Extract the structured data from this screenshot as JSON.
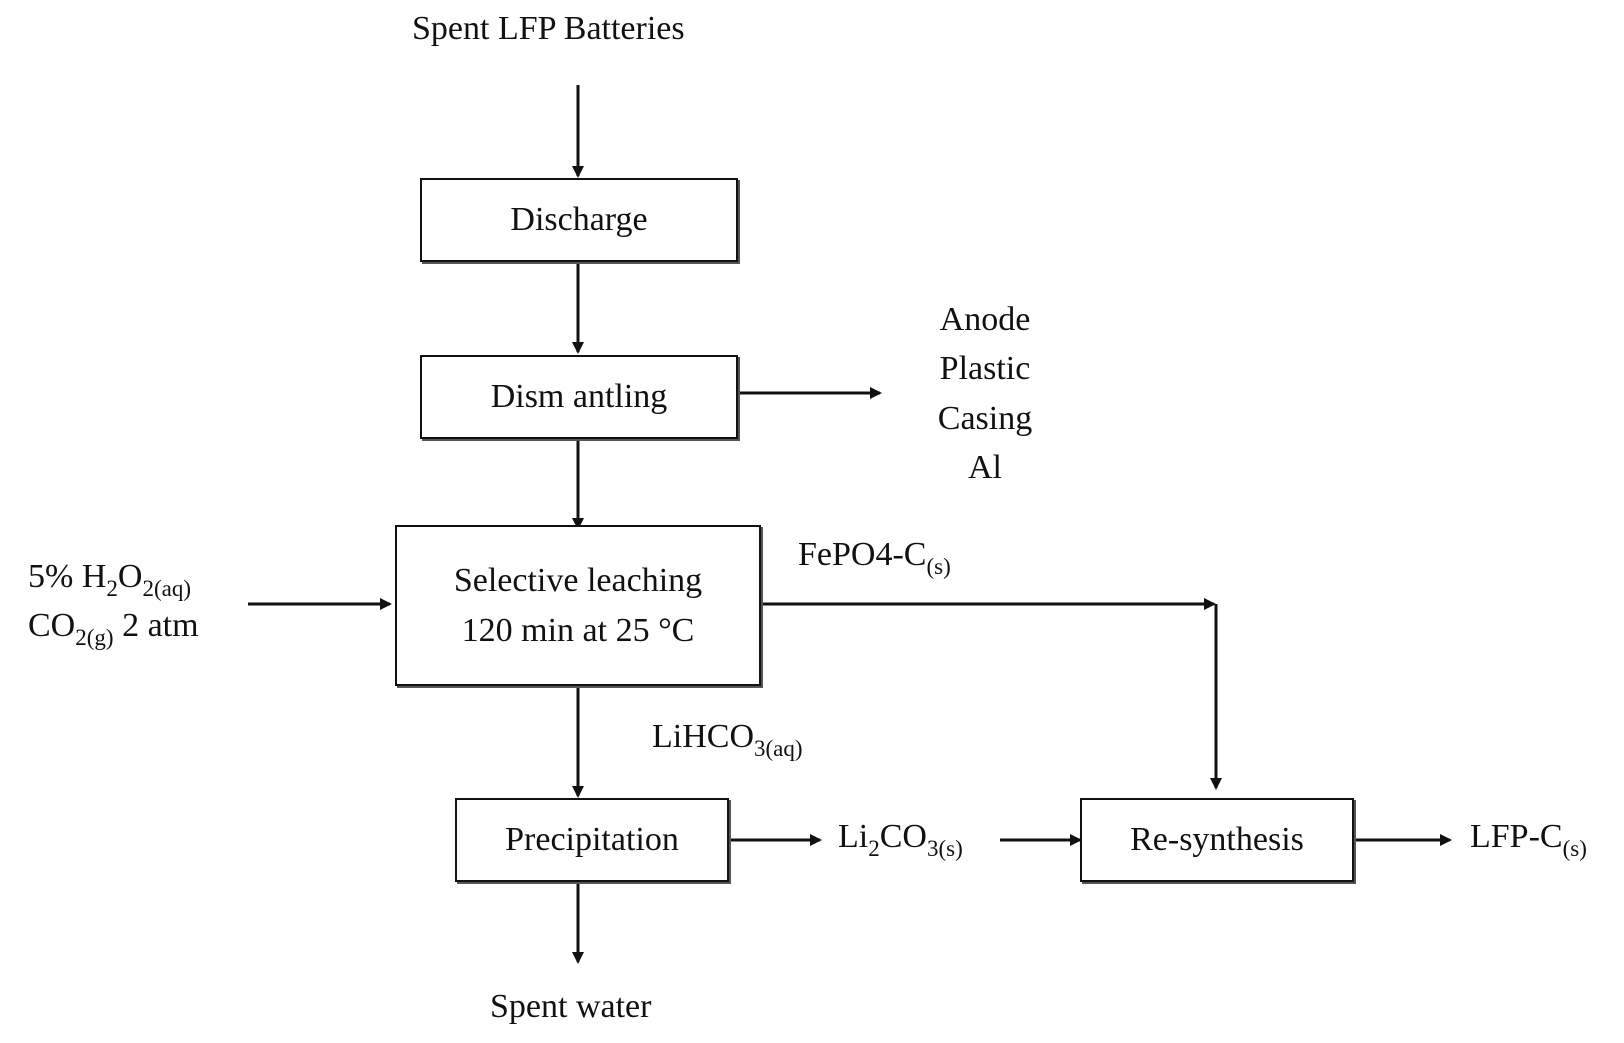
{
  "title": "Spent LFP Batteries",
  "steps": {
    "discharge": "Discharge",
    "dismantling": "Dism antling",
    "leaching_line1": "Selective leaching",
    "leaching_line2": "120 min at 25 °C",
    "precipitation": "Precipitation",
    "resynthesis": "Re-synthesis"
  },
  "dismantling_outputs": [
    "Anode",
    "Plastic",
    "Casing",
    "Al"
  ],
  "leach_inputs": {
    "line1_prefix": "5% H",
    "line1_sub1": "2",
    "line1_mid": "O",
    "line1_sub2": "2(aq)",
    "line2_prefix": "CO",
    "line2_sub": "2(g)",
    "line2_suffix": " 2 atm"
  },
  "fepo4": {
    "main": "FePO4-C",
    "sub": "(s)"
  },
  "lihco3": {
    "main": "LiHCO",
    "sub": "3(aq)"
  },
  "li2co3": {
    "p1": "Li",
    "s1": "2",
    "p2": "CO",
    "s2": "3(s)"
  },
  "product": {
    "main": "LFP-C",
    "sub": "(s)"
  },
  "waste": "Spent water"
}
